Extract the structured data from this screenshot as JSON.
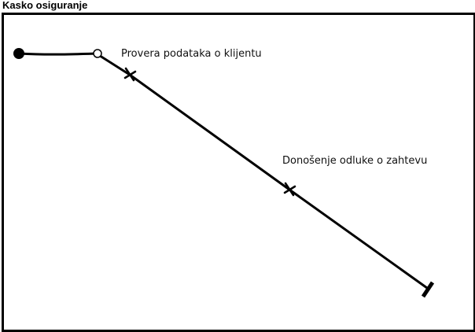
{
  "diagram": {
    "title": "Kasko osiguranje",
    "type": "timing-diagram",
    "states": [
      {
        "label": "Provera podataka o klijentu",
        "marker": "cross"
      },
      {
        "label": "Donošenje odluke o zahtevu",
        "marker": "cross"
      }
    ],
    "start_marker": "filled-circle",
    "transition_marker": "hollow-circle",
    "end_marker": "bar-terminator",
    "colors": {
      "line": "#000000",
      "background": "#ffffff",
      "frame": "#000000"
    }
  }
}
